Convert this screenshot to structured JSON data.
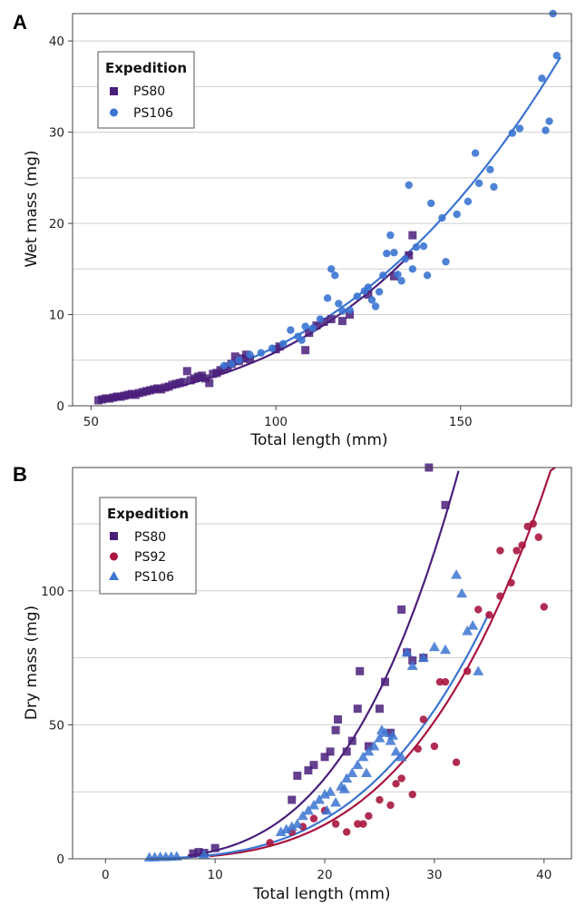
{
  "chart_data": [
    {
      "panel": "A",
      "type": "scatter",
      "xlabel": "Total length (mm)",
      "ylabel": "Wet mass (mg)",
      "xlim": [
        45,
        180
      ],
      "ylim": [
        0,
        43
      ],
      "xticks": [
        50,
        100,
        150
      ],
      "yticks": [
        0,
        10,
        20,
        30,
        40
      ],
      "grid": "horizontal",
      "legend": {
        "title": "Expedition",
        "placement": "top-left",
        "entries": [
          "PS80",
          "PS106"
        ]
      },
      "series": [
        {
          "name": "PS80",
          "color": "#4a1f7a",
          "marker": "square",
          "points": [
            [
              52,
              0.6
            ],
            [
              53,
              0.7
            ],
            [
              54,
              0.8
            ],
            [
              55,
              0.8
            ],
            [
              56,
              0.9
            ],
            [
              57,
              1.0
            ],
            [
              58,
              1.0
            ],
            [
              59,
              1.1
            ],
            [
              60,
              1.2
            ],
            [
              61,
              1.3
            ],
            [
              62,
              1.2
            ],
            [
              63,
              1.4
            ],
            [
              64,
              1.5
            ],
            [
              65,
              1.6
            ],
            [
              66,
              1.7
            ],
            [
              67,
              1.8
            ],
            [
              68,
              1.9
            ],
            [
              69,
              1.8
            ],
            [
              70,
              2.0
            ],
            [
              71,
              2.1
            ],
            [
              72,
              2.3
            ],
            [
              73,
              2.4
            ],
            [
              74,
              2.5
            ],
            [
              75,
              2.6
            ],
            [
              76,
              3.8
            ],
            [
              77,
              2.8
            ],
            [
              78,
              3.0
            ],
            [
              79,
              3.2
            ],
            [
              80,
              3.3
            ],
            [
              81,
              3.0
            ],
            [
              82,
              2.5
            ],
            [
              83,
              3.5
            ],
            [
              84,
              3.6
            ],
            [
              85,
              3.9
            ],
            [
              86,
              4.0
            ],
            [
              87,
              4.3
            ],
            [
              88,
              4.6
            ],
            [
              89,
              5.4
            ],
            [
              90,
              4.9
            ],
            [
              91,
              5.2
            ],
            [
              92,
              5.6
            ],
            [
              93,
              5.1
            ],
            [
              100,
              6.2
            ],
            [
              101,
              6.5
            ],
            [
              108,
              6.1
            ],
            [
              109,
              8.0
            ],
            [
              111,
              8.8
            ],
            [
              113,
              9.2
            ],
            [
              115,
              9.5
            ],
            [
              118,
              9.3
            ],
            [
              120,
              10.0
            ],
            [
              125,
              12.2
            ],
            [
              132,
              14.2
            ],
            [
              136,
              16.5
            ],
            [
              137,
              18.7
            ]
          ],
          "fit": {
            "a": 1.29e-06,
            "b": 3.33,
            "x_range": [
              52,
              137
            ]
          }
        },
        {
          "name": "PS106",
          "color": "#3b74d1",
          "marker": "circle",
          "points": [
            [
              86,
              4.4
            ],
            [
              88,
              4.6
            ],
            [
              90,
              5.0
            ],
            [
              93,
              5.6
            ],
            [
              96,
              5.8
            ],
            [
              99,
              6.3
            ],
            [
              102,
              6.8
            ],
            [
              104,
              8.3
            ],
            [
              106,
              7.6
            ],
            [
              107,
              7.2
            ],
            [
              108,
              8.7
            ],
            [
              110,
              8.5
            ],
            [
              112,
              9.5
            ],
            [
              114,
              11.8
            ],
            [
              115,
              15.0
            ],
            [
              116,
              14.3
            ],
            [
              117,
              11.2
            ],
            [
              118,
              10.4
            ],
            [
              120,
              10.5
            ],
            [
              122,
              12.0
            ],
            [
              124,
              12.6
            ],
            [
              125,
              13.0
            ],
            [
              126,
              11.6
            ],
            [
              127,
              10.9
            ],
            [
              128,
              12.5
            ],
            [
              129,
              14.3
            ],
            [
              130,
              16.7
            ],
            [
              131,
              18.7
            ],
            [
              132,
              16.8
            ],
            [
              133,
              14.4
            ],
            [
              134,
              13.7
            ],
            [
              135,
              16.1
            ],
            [
              136,
              24.2
            ],
            [
              137,
              15.0
            ],
            [
              138,
              17.4
            ],
            [
              140,
              17.5
            ],
            [
              141,
              14.3
            ],
            [
              142,
              22.2
            ],
            [
              145,
              20.6
            ],
            [
              146,
              15.8
            ],
            [
              149,
              21.0
            ],
            [
              152,
              22.4
            ],
            [
              154,
              27.7
            ],
            [
              155,
              24.4
            ],
            [
              158,
              25.9
            ],
            [
              159,
              24.0
            ],
            [
              164,
              29.9
            ],
            [
              166,
              30.4
            ],
            [
              172,
              35.9
            ],
            [
              173,
              30.2
            ],
            [
              174,
              31.2
            ],
            [
              175,
              43.5
            ],
            [
              176,
              38.4
            ]
          ],
          "fit": {
            "a": 3.9e-06,
            "b": 3.11,
            "x_range": [
              86,
              177
            ]
          }
        }
      ]
    },
    {
      "panel": "B",
      "type": "scatter",
      "xlabel": "Total length (mm)",
      "ylabel": "Dry mass (mg)",
      "xlim": [
        -3,
        42.5
      ],
      "ylim": [
        0,
        146
      ],
      "xticks": [
        0,
        10,
        20,
        30,
        40
      ],
      "yticks": [
        0,
        50,
        100
      ],
      "grid": "horizontal",
      "legend": {
        "title": "Expedition",
        "placement": "top-left",
        "entries": [
          "PS80",
          "PS92",
          "PS106"
        ]
      },
      "series": [
        {
          "name": "PS80",
          "color": "#4a1f7a",
          "marker": "square",
          "points": [
            [
              8,
              2
            ],
            [
              8.5,
              2.5
            ],
            [
              9,
              2.2
            ],
            [
              10,
              4
            ],
            [
              17,
              22
            ],
            [
              17.5,
              31
            ],
            [
              18.5,
              33
            ],
            [
              19,
              35
            ],
            [
              20,
              38
            ],
            [
              20.5,
              40
            ],
            [
              21,
              48
            ],
            [
              21.2,
              52
            ],
            [
              22,
              40
            ],
            [
              22.5,
              44
            ],
            [
              23,
              56
            ],
            [
              23.2,
              70
            ],
            [
              24,
              42
            ],
            [
              25,
              56
            ],
            [
              25.5,
              66
            ],
            [
              26,
              47
            ],
            [
              27,
              93
            ],
            [
              27.5,
              77
            ],
            [
              28,
              74
            ],
            [
              29,
              75
            ],
            [
              29.5,
              147
            ],
            [
              31,
              132
            ]
          ],
          "fit": {
            "a": 0.00153,
            "b": 3.3,
            "x_range": [
              7.5,
              32.2
            ]
          }
        },
        {
          "name": "PS92",
          "color": "#a8153e",
          "marker": "circle",
          "points": [
            [
              15,
              6
            ],
            [
              17,
              10
            ],
            [
              18,
              12
            ],
            [
              19,
              15
            ],
            [
              20,
              18
            ],
            [
              21,
              13
            ],
            [
              22,
              10
            ],
            [
              23,
              13
            ],
            [
              24,
              16
            ],
            [
              25,
              22
            ],
            [
              26,
              20
            ],
            [
              26.5,
              28
            ],
            [
              27,
              30
            ],
            [
              28,
              24
            ],
            [
              28.5,
              41
            ],
            [
              29,
              52
            ],
            [
              30,
              42
            ],
            [
              30.5,
              66
            ],
            [
              31,
              66
            ],
            [
              32,
              36
            ],
            [
              33,
              70
            ],
            [
              34,
              93
            ],
            [
              35,
              91
            ],
            [
              36,
              98
            ],
            [
              37,
              103
            ],
            [
              37.5,
              115
            ],
            [
              38,
              117
            ],
            [
              38.5,
              124
            ],
            [
              39,
              125
            ],
            [
              39.5,
              120
            ],
            [
              40,
              94
            ],
            [
              36,
              115
            ],
            [
              23.5,
              13
            ]
          ],
          "fit": {
            "a": 0.00044,
            "b": 3.43,
            "x_range": [
              9.5,
              41
            ]
          }
        },
        {
          "name": "PS106",
          "color": "#3b74d1",
          "marker": "triangle",
          "points": [
            [
              4,
              0.5
            ],
            [
              4.5,
              0.6
            ],
            [
              5,
              0.7
            ],
            [
              5.5,
              0.7
            ],
            [
              6,
              0.8
            ],
            [
              6.5,
              0.9
            ],
            [
              9,
              1.6
            ],
            [
              16,
              10
            ],
            [
              16.5,
              11
            ],
            [
              17,
              12
            ],
            [
              17.5,
              13
            ],
            [
              18,
              16
            ],
            [
              18.5,
              18
            ],
            [
              19,
              20
            ],
            [
              19.5,
              22
            ],
            [
              20,
              24
            ],
            [
              20.5,
              25
            ],
            [
              21,
              21
            ],
            [
              21.5,
              27
            ],
            [
              22,
              30
            ],
            [
              22.5,
              32
            ],
            [
              23,
              35
            ],
            [
              23.5,
              38
            ],
            [
              24,
              40
            ],
            [
              24.5,
              42
            ],
            [
              25,
              45
            ],
            [
              25.5,
              47
            ],
            [
              26,
              44
            ],
            [
              26.5,
              40
            ],
            [
              27,
              38
            ],
            [
              27.5,
              77
            ],
            [
              28,
              72
            ],
            [
              29,
              75
            ],
            [
              30,
              79
            ],
            [
              31,
              78
            ],
            [
              32,
              106
            ],
            [
              32.5,
              99
            ],
            [
              33,
              85
            ],
            [
              33.5,
              87
            ],
            [
              34,
              70
            ],
            [
              20.2,
              18
            ],
            [
              21.8,
              26
            ],
            [
              23.8,
              32
            ],
            [
              25.2,
              48
            ],
            [
              26.2,
              46
            ]
          ],
          "fit": {
            "a": 0.00085,
            "b": 3.26,
            "x_range": [
              3.8,
              35
            ]
          }
        }
      ]
    }
  ]
}
